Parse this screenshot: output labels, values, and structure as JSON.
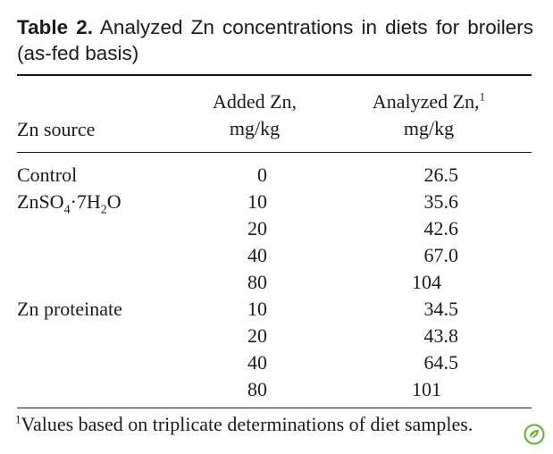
{
  "caption": {
    "label": "Table 2.",
    "text": "Analyzed Zn concentrations in diets for broilers (as-fed basis)"
  },
  "table": {
    "headers": {
      "source": "Zn source",
      "added_line1": "Added Zn,",
      "added_line2": "mg/kg",
      "analyzed_line1": "Analyzed Zn,",
      "analyzed_sup": "1",
      "analyzed_line2": "mg/kg"
    },
    "rows": [
      {
        "source": "Control",
        "added": "0",
        "analyzed": "26.5"
      },
      {
        "source": "ZnSO4·7H2O",
        "added": "10",
        "analyzed": "35.6"
      },
      {
        "source": "",
        "added": "20",
        "analyzed": "42.6"
      },
      {
        "source": "",
        "added": "40",
        "analyzed": "67.0"
      },
      {
        "source": "",
        "added": "80",
        "analyzed": "104"
      },
      {
        "source": "Zn proteinate",
        "added": "10",
        "analyzed": "34.5"
      },
      {
        "source": "",
        "added": "20",
        "analyzed": "43.8"
      },
      {
        "source": "",
        "added": "40",
        "analyzed": "64.5"
      },
      {
        "source": "",
        "added": "80",
        "analyzed": "101"
      }
    ],
    "zinc_sulfate": {
      "a": "ZnSO",
      "b": "4",
      "c": "·7H",
      "d": "2",
      "e": "O"
    }
  },
  "footnote": {
    "marker": "1",
    "text": "Values based on triplicate determinations of diet samples."
  },
  "logo_icon": "leaf-logo",
  "logo_color": "#6fb43f"
}
